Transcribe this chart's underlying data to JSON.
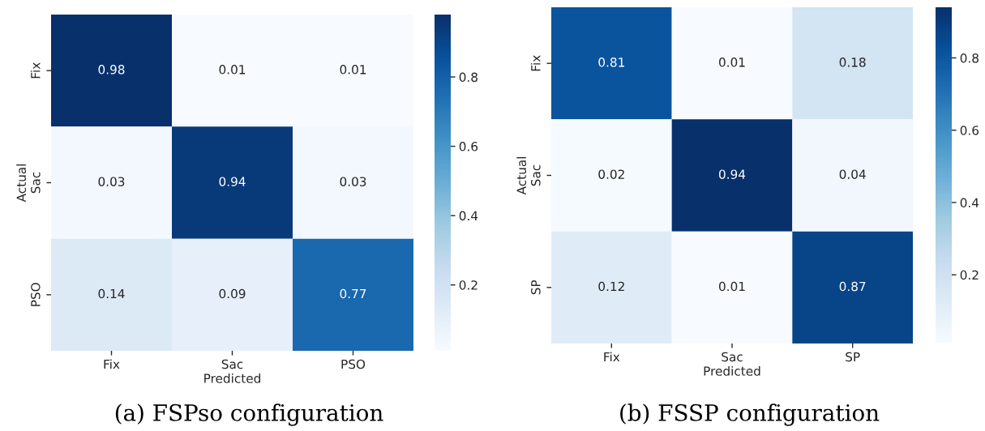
{
  "chart_data": [
    {
      "type": "heatmap",
      "title": "(a) FSPso configuration",
      "xlabel": "Predicted",
      "ylabel": "Actual",
      "categories": [
        "Fix",
        "Sac",
        "PSO"
      ],
      "y_categories": [
        "Fix",
        "Sac",
        "PSO"
      ],
      "cells": [
        [
          0.98,
          0.01,
          0.01
        ],
        [
          0.03,
          0.94,
          0.03
        ],
        [
          0.14,
          0.09,
          0.77
        ]
      ],
      "clim": [
        0.01,
        0.98
      ],
      "cticks": [
        0.2,
        0.4,
        0.6,
        0.8
      ],
      "data_labels": true
    },
    {
      "type": "heatmap",
      "title": "(b) FSSP configuration",
      "xlabel": "Predicted",
      "ylabel": "Actual",
      "categories": [
        "Fix",
        "Sac",
        "SP"
      ],
      "y_categories": [
        "Fix",
        "Sac",
        "SP"
      ],
      "cells": [
        [
          0.81,
          0.01,
          0.18
        ],
        [
          0.02,
          0.94,
          0.04
        ],
        [
          0.12,
          0.01,
          0.87
        ]
      ],
      "clim": [
        0.01,
        0.94
      ],
      "cticks": [
        0.2,
        0.4,
        0.6,
        0.8
      ],
      "data_labels": true
    }
  ]
}
